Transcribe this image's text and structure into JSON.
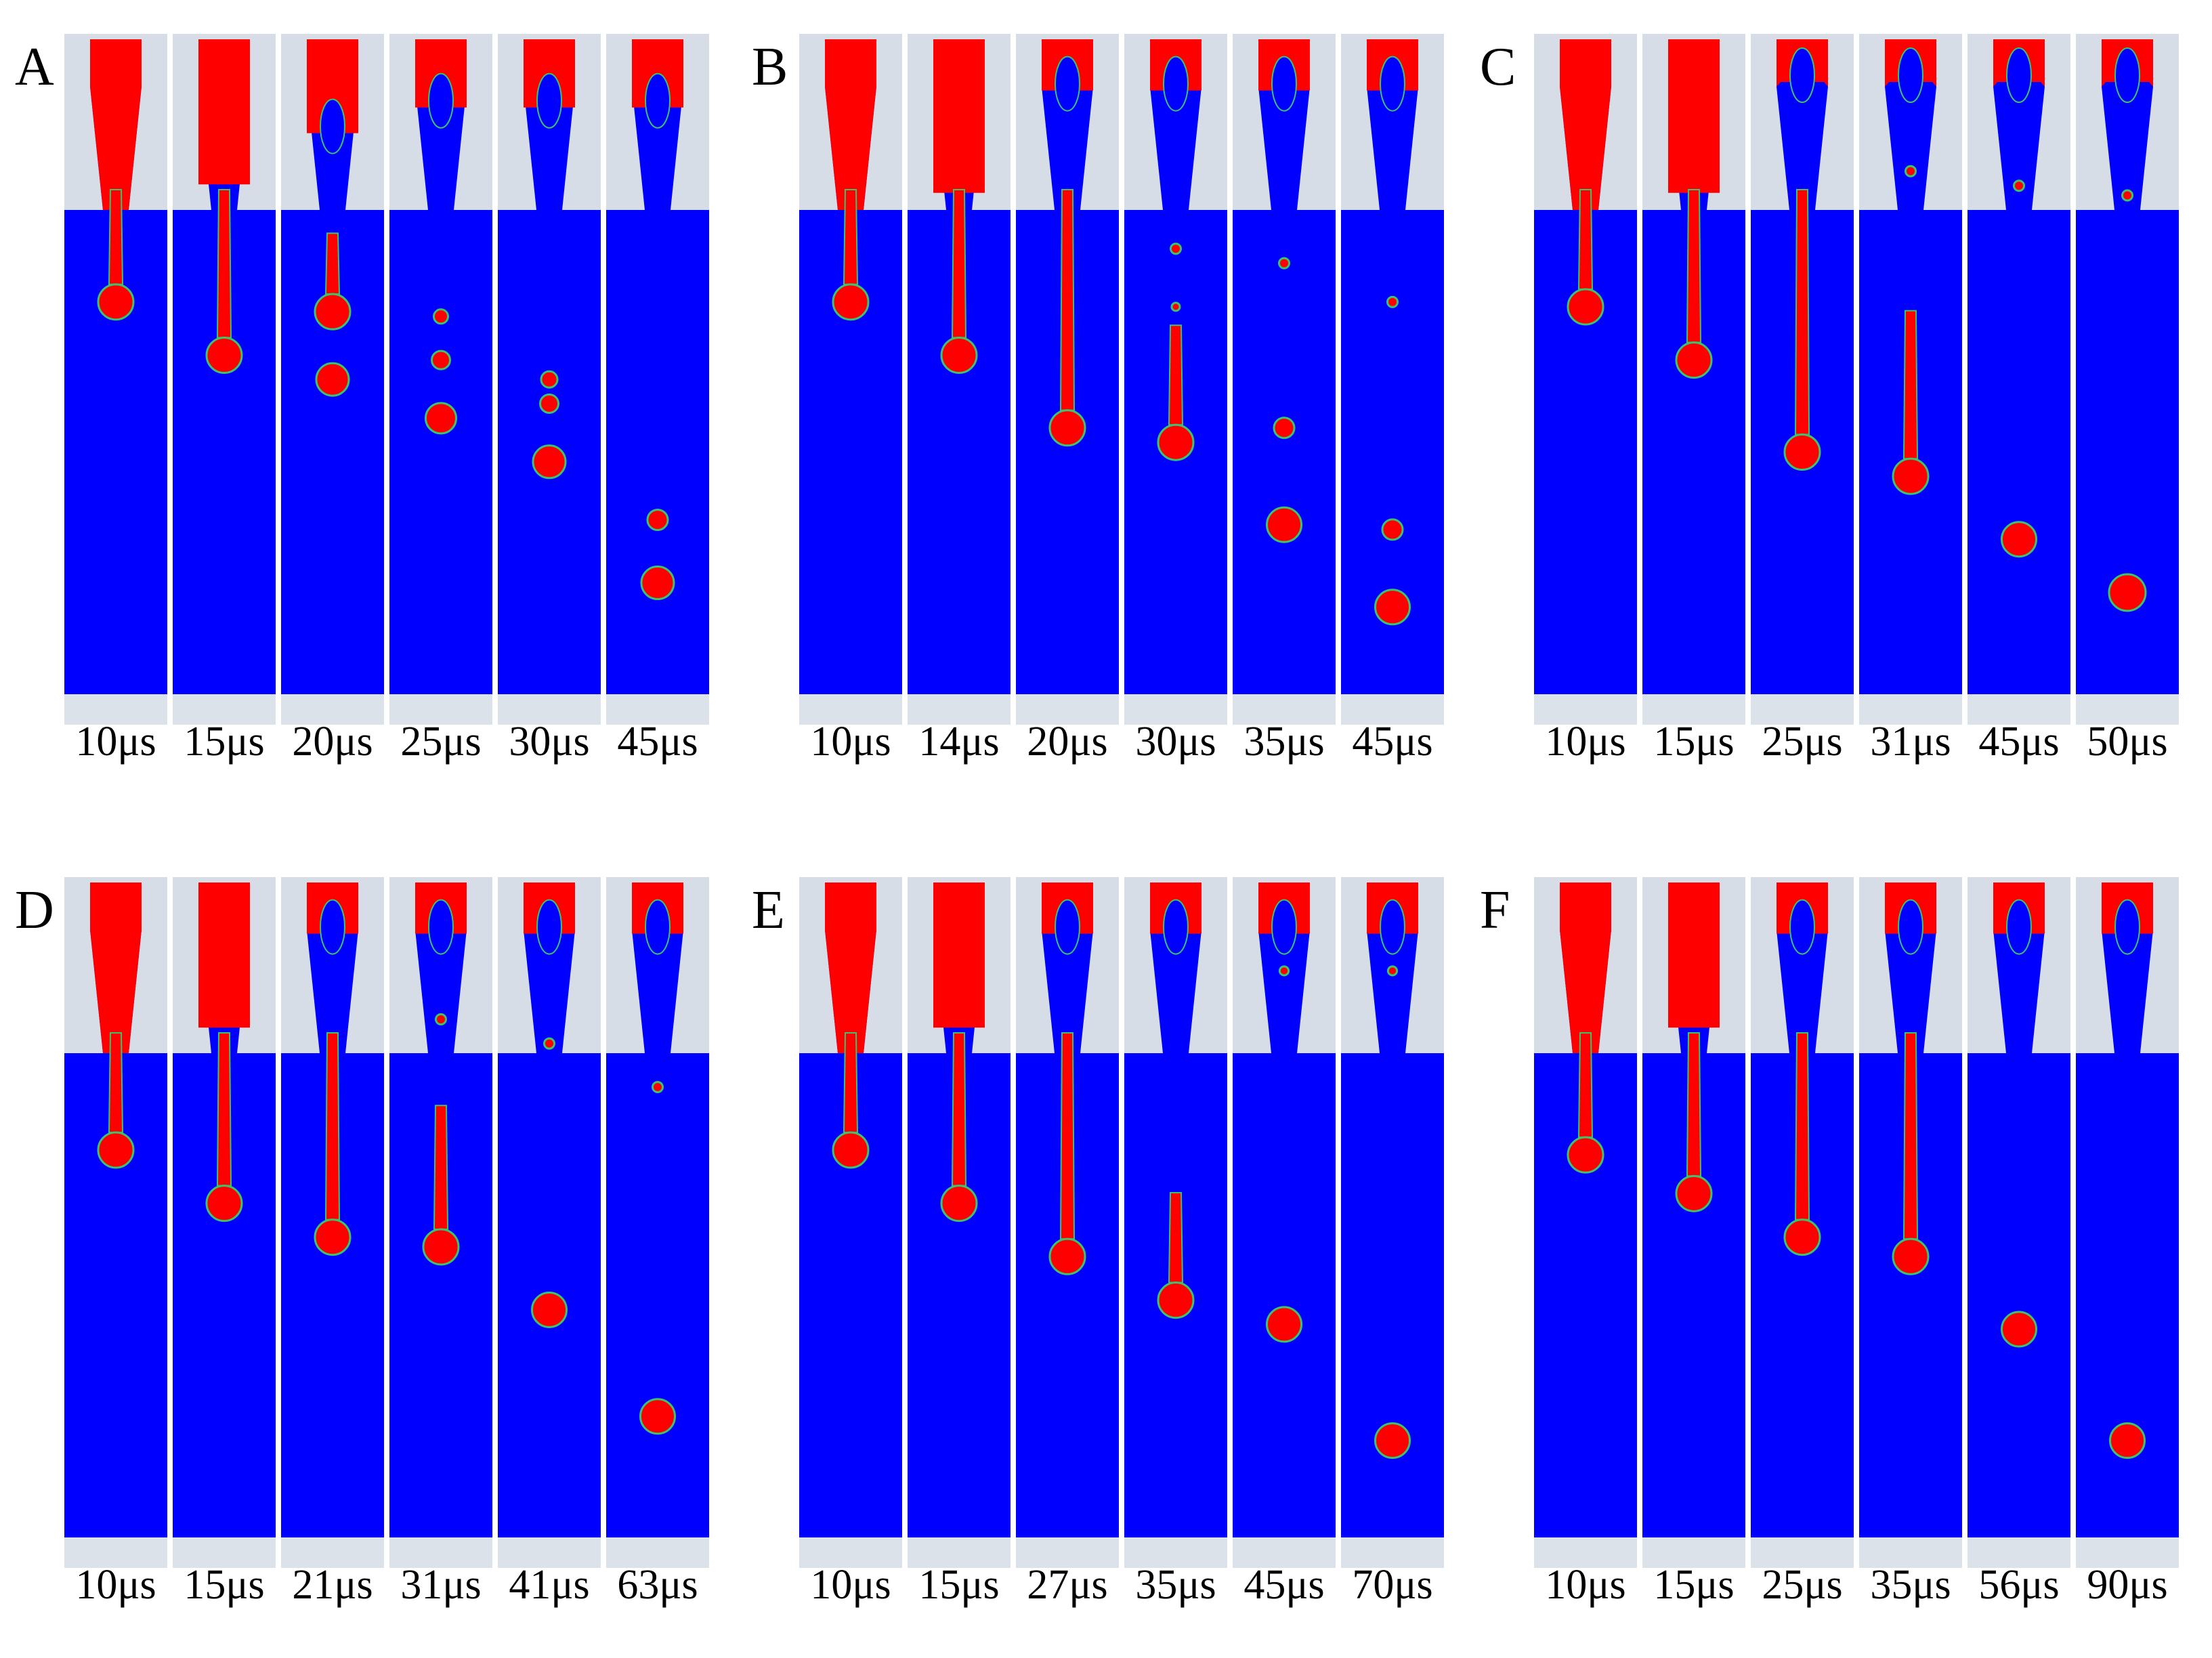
{
  "colors": {
    "droplet": "#ff0000",
    "medium": "#0000ff",
    "nozzle": "#d7dde6",
    "footer": "#dce2ea",
    "interface": "#3cc36e"
  },
  "panels": [
    {
      "letter": "A",
      "frames": [
        {
          "time": "10μs",
          "nozzle_fill": 1.0,
          "tail_len": 0.19,
          "drops": []
        },
        {
          "time": "15μs",
          "nozzle_fill": 0.85,
          "tail_len": 0.3,
          "drops": []
        },
        {
          "time": "20μs",
          "nozzle_fill": 0.55,
          "tail_len": 0.12,
          "tail_offset": 0.09,
          "drops": [
            {
              "pos": 0.35,
              "size": 0.8
            }
          ]
        },
        {
          "time": "25μs",
          "nozzle_fill": 0.4,
          "tail_len": 0,
          "drops": [
            {
              "pos": 0.22,
              "size": 0.35
            },
            {
              "pos": 0.31,
              "size": 0.45
            },
            {
              "pos": 0.43,
              "size": 0.75
            }
          ]
        },
        {
          "time": "30μs",
          "nozzle_fill": 0.4,
          "tail_len": 0,
          "drops": [
            {
              "pos": 0.35,
              "size": 0.4
            },
            {
              "pos": 0.4,
              "size": 0.45
            },
            {
              "pos": 0.52,
              "size": 0.8
            }
          ]
        },
        {
          "time": "45μs",
          "nozzle_fill": 0.4,
          "tail_len": 0,
          "drops": [
            {
              "pos": 0.64,
              "size": 0.5
            },
            {
              "pos": 0.77,
              "size": 0.8
            }
          ]
        }
      ]
    },
    {
      "letter": "B",
      "frames": [
        {
          "time": "10μs",
          "nozzle_fill": 1.0,
          "tail_len": 0.19,
          "drops": []
        },
        {
          "time": "14μs",
          "nozzle_fill": 0.9,
          "tail_len": 0.3,
          "drops": []
        },
        {
          "time": "20μs",
          "nozzle_fill": 0.3,
          "tail_len": 0.45,
          "drops": []
        },
        {
          "time": "30μs",
          "nozzle_fill": 0.3,
          "tail_len": 0.2,
          "tail_offset": 0.28,
          "drops": [
            {
              "pos": 0.08,
              "size": 0.25
            },
            {
              "pos": 0.2,
              "size": 0.15
            }
          ]
        },
        {
          "time": "35μs",
          "nozzle_fill": 0.3,
          "tail_len": 0,
          "drops": [
            {
              "pos": 0.11,
              "size": 0.25
            },
            {
              "pos": 0.45,
              "size": 0.5
            },
            {
              "pos": 0.65,
              "size": 0.85
            }
          ]
        },
        {
          "time": "45μs",
          "nozzle_fill": 0.3,
          "tail_len": 0,
          "drops": [
            {
              "pos": 0.19,
              "size": 0.25
            },
            {
              "pos": 0.66,
              "size": 0.5
            },
            {
              "pos": 0.82,
              "size": 0.85
            }
          ]
        }
      ]
    },
    {
      "letter": "C",
      "frames": [
        {
          "time": "10μs",
          "nozzle_fill": 1.0,
          "tail_len": 0.2,
          "drops": []
        },
        {
          "time": "15μs",
          "nozzle_fill": 0.9,
          "tail_len": 0.31,
          "drops": []
        },
        {
          "time": "25μs",
          "nozzle_fill": 0.25,
          "tail_len": 0.5,
          "drops": []
        },
        {
          "time": "31μs",
          "nozzle_fill": 0.25,
          "tail_len": 0.3,
          "tail_offset": 0.25,
          "drops": [
            {
              "pos": -0.08,
              "size": 0.25
            }
          ]
        },
        {
          "time": "45μs",
          "nozzle_fill": 0.25,
          "tail_len": 0,
          "drops": [
            {
              "pos": -0.05,
              "size": 0.25
            },
            {
              "pos": 0.68,
              "size": 0.85
            }
          ]
        },
        {
          "time": "50μs",
          "nozzle_fill": 0.25,
          "tail_len": 0,
          "drops": [
            {
              "pos": -0.03,
              "size": 0.25
            },
            {
              "pos": 0.79,
              "size": 0.9
            }
          ]
        }
      ]
    },
    {
      "letter": "D",
      "frames": [
        {
          "time": "10μs",
          "nozzle_fill": 1.0,
          "tail_len": 0.2,
          "drops": []
        },
        {
          "time": "15μs",
          "nozzle_fill": 0.85,
          "tail_len": 0.31,
          "drops": []
        },
        {
          "time": "21μs",
          "nozzle_fill": 0.3,
          "tail_len": 0.38,
          "drops": []
        },
        {
          "time": "31μs",
          "nozzle_fill": 0.3,
          "tail_len": 0.25,
          "tail_offset": 0.15,
          "drops": [
            {
              "pos": -0.07,
              "size": 0.25
            }
          ]
        },
        {
          "time": "41μs",
          "nozzle_fill": 0.3,
          "tail_len": 0,
          "drops": [
            {
              "pos": -0.02,
              "size": 0.25
            },
            {
              "pos": 0.53,
              "size": 0.85
            }
          ]
        },
        {
          "time": "63μs",
          "nozzle_fill": 0.3,
          "tail_len": 0,
          "drops": [
            {
              "pos": 0.07,
              "size": 0.25
            },
            {
              "pos": 0.75,
              "size": 0.85
            }
          ]
        }
      ]
    },
    {
      "letter": "E",
      "frames": [
        {
          "time": "10μs",
          "nozzle_fill": 1.0,
          "tail_len": 0.2,
          "drops": []
        },
        {
          "time": "15μs",
          "nozzle_fill": 0.85,
          "tail_len": 0.31,
          "drops": []
        },
        {
          "time": "27μs",
          "nozzle_fill": 0.3,
          "tail_len": 0.42,
          "drops": []
        },
        {
          "time": "35μs",
          "nozzle_fill": 0.3,
          "tail_len": 0.18,
          "tail_offset": 0.33,
          "drops": []
        },
        {
          "time": "45μs",
          "nozzle_fill": 0.3,
          "tail_len": 0,
          "drops": [
            {
              "pos": -0.17,
              "size": 0.22
            },
            {
              "pos": 0.56,
              "size": 0.85
            }
          ]
        },
        {
          "time": "70μs",
          "nozzle_fill": 0.3,
          "tail_len": 0,
          "drops": [
            {
              "pos": -0.17,
              "size": 0.22
            },
            {
              "pos": 0.8,
              "size": 0.85
            }
          ]
        }
      ]
    },
    {
      "letter": "F",
      "frames": [
        {
          "time": "10μs",
          "nozzle_fill": 1.0,
          "tail_len": 0.21,
          "drops": []
        },
        {
          "time": "15μs",
          "nozzle_fill": 0.85,
          "tail_len": 0.29,
          "drops": []
        },
        {
          "time": "25μs",
          "nozzle_fill": 0.3,
          "tail_len": 0.38,
          "drops": []
        },
        {
          "time": "35μs",
          "nozzle_fill": 0.3,
          "tail_len": 0.42,
          "drops": []
        },
        {
          "time": "56μs",
          "nozzle_fill": 0.3,
          "tail_len": 0,
          "drops": [
            {
              "pos": 0.57,
              "size": 0.85
            }
          ]
        },
        {
          "time": "90μs",
          "nozzle_fill": 0.3,
          "tail_len": 0,
          "drops": [
            {
              "pos": 0.8,
              "size": 0.85
            }
          ]
        }
      ]
    }
  ]
}
